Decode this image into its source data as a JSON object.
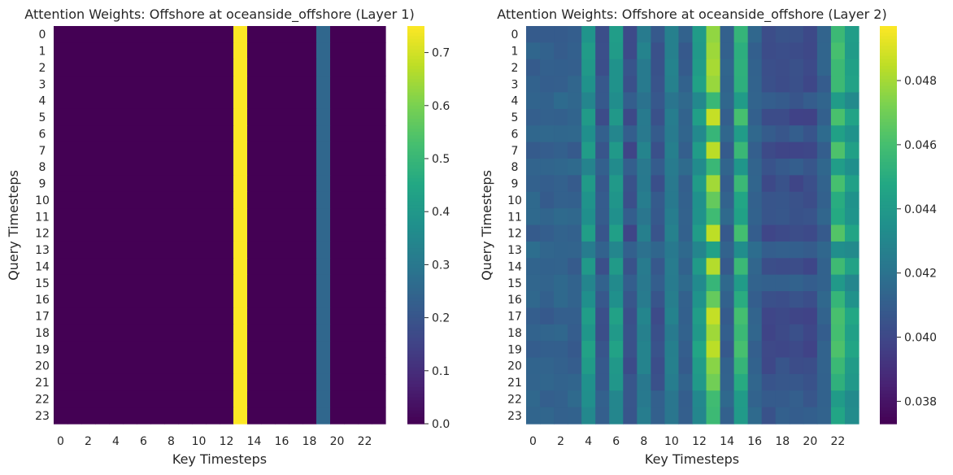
{
  "chart_data": [
    {
      "type": "heatmap",
      "title": "Attention Weights: Offshore at oceanside_offshore (Layer 1)",
      "xlabel": "Key Timesteps",
      "ylabel": "Query Timesteps",
      "x_tick_labels": [
        "0",
        "2",
        "4",
        "6",
        "8",
        "10",
        "12",
        "14",
        "16",
        "18",
        "20",
        "22"
      ],
      "y_tick_labels": [
        "0",
        "1",
        "2",
        "3",
        "4",
        "5",
        "6",
        "7",
        "8",
        "9",
        "10",
        "11",
        "12",
        "13",
        "14",
        "15",
        "16",
        "17",
        "18",
        "19",
        "20",
        "21",
        "22",
        "23"
      ],
      "colormap": "viridis",
      "vmin": 0.0,
      "vmax": 0.75,
      "colorbar_ticks": [
        0.0,
        0.1,
        0.2,
        0.3,
        0.4,
        0.5,
        0.6,
        0.7
      ],
      "colorbar_tick_labels": [
        "0.0",
        "0.1",
        "0.2",
        "0.3",
        "0.4",
        "0.5",
        "0.6",
        "0.7"
      ],
      "rows": 24,
      "cols": 24,
      "row_pattern": [
        0.0,
        0.0,
        0.0,
        0.0,
        0.0,
        0.0,
        0.0,
        0.0,
        0.0,
        0.0,
        0.0,
        0.0,
        0.0,
        0.75,
        0.0,
        0.0,
        0.0,
        0.0,
        0.0,
        0.25,
        0.0,
        0.0,
        0.0,
        0.0
      ]
    },
    {
      "type": "heatmap",
      "title": "Attention Weights: Offshore at oceanside_offshore (Layer 2)",
      "xlabel": "Key Timesteps",
      "ylabel": "Query Timesteps",
      "x_tick_labels": [
        "0",
        "2",
        "4",
        "6",
        "8",
        "10",
        "12",
        "14",
        "16",
        "18",
        "20",
        "22"
      ],
      "y_tick_labels": [
        "0",
        "1",
        "2",
        "3",
        "4",
        "5",
        "6",
        "7",
        "8",
        "9",
        "10",
        "11",
        "12",
        "13",
        "14",
        "15",
        "16",
        "17",
        "18",
        "19",
        "20",
        "21",
        "22",
        "23"
      ],
      "colormap": "viridis",
      "vmin": 0.0373,
      "vmax": 0.0497,
      "colorbar_ticks": [
        0.038,
        0.04,
        0.042,
        0.044,
        0.046,
        0.048
      ],
      "colorbar_tick_labels": [
        "0.038",
        "0.040",
        "0.042",
        "0.044",
        "0.046",
        "0.048"
      ],
      "rows": 24,
      "cols": 24,
      "column_base": [
        0.0412,
        0.0411,
        0.0412,
        0.0412,
        0.0438,
        0.0406,
        0.0438,
        0.0404,
        0.0425,
        0.0406,
        0.0425,
        0.0411,
        0.044,
        0.0475,
        0.0412,
        0.0452,
        0.0412,
        0.0402,
        0.0404,
        0.0403,
        0.0403,
        0.0412,
        0.0456,
        0.0441
      ],
      "row_strength": [
        0.8,
        0.8,
        0.8,
        0.8,
        0.3,
        1.0,
        0.3,
        1.0,
        0.3,
        0.9,
        0.6,
        0.4,
        1.0,
        0.05,
        0.9,
        0.2,
        0.6,
        1.0,
        0.8,
        1.0,
        0.8,
        0.6,
        0.3,
        0.3
      ]
    }
  ]
}
